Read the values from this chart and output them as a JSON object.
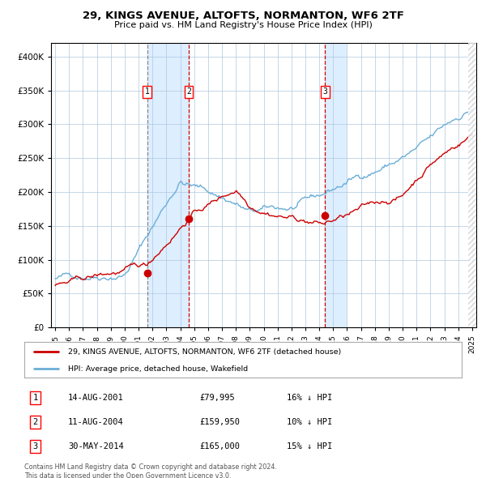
{
  "title": "29, KINGS AVENUE, ALTOFTS, NORMANTON, WF6 2TF",
  "subtitle": "Price paid vs. HM Land Registry's House Price Index (HPI)",
  "ylim": [
    0,
    420000
  ],
  "yticks": [
    0,
    50000,
    100000,
    150000,
    200000,
    250000,
    300000,
    350000,
    400000
  ],
  "ytick_labels": [
    "£0",
    "£50K",
    "£100K",
    "£150K",
    "£200K",
    "£250K",
    "£300K",
    "£350K",
    "£400K"
  ],
  "xmin_year": 1995,
  "xmax_year": 2025,
  "xtick_years": [
    1995,
    1996,
    1997,
    1998,
    1999,
    2000,
    2001,
    2002,
    2003,
    2004,
    2005,
    2006,
    2007,
    2008,
    2009,
    2010,
    2011,
    2012,
    2013,
    2014,
    2015,
    2016,
    2017,
    2018,
    2019,
    2020,
    2021,
    2022,
    2023,
    2024,
    2025
  ],
  "hpi_color": "#6baed6",
  "price_color": "#cc0000",
  "sale_marker_color": "#cc0000",
  "vline1_color": "#888888",
  "vline2_color": "#cc0000",
  "shade_color": "#ddeeff",
  "grid_color": "#aec8e0",
  "background_color": "#ffffff",
  "sale1_year": 2001.617,
  "sale1_price": 79995,
  "sale2_year": 2004.608,
  "sale2_price": 159950,
  "sale3_year": 2014.413,
  "sale3_price": 165000,
  "legend_label1": "29, KINGS AVENUE, ALTOFTS, NORMANTON, WF6 2TF (detached house)",
  "legend_label2": "HPI: Average price, detached house, Wakefield",
  "table_entries": [
    {
      "num": 1,
      "date": "14-AUG-2001",
      "price": "£79,995",
      "hpi": "16% ↓ HPI"
    },
    {
      "num": 2,
      "date": "11-AUG-2004",
      "price": "£159,950",
      "hpi": "10% ↓ HPI"
    },
    {
      "num": 3,
      "date": "30-MAY-2014",
      "price": "£165,000",
      "hpi": "15% ↓ HPI"
    }
  ],
  "footer": "Contains HM Land Registry data © Crown copyright and database right 2024.\nThis data is licensed under the Open Government Licence v3.0."
}
